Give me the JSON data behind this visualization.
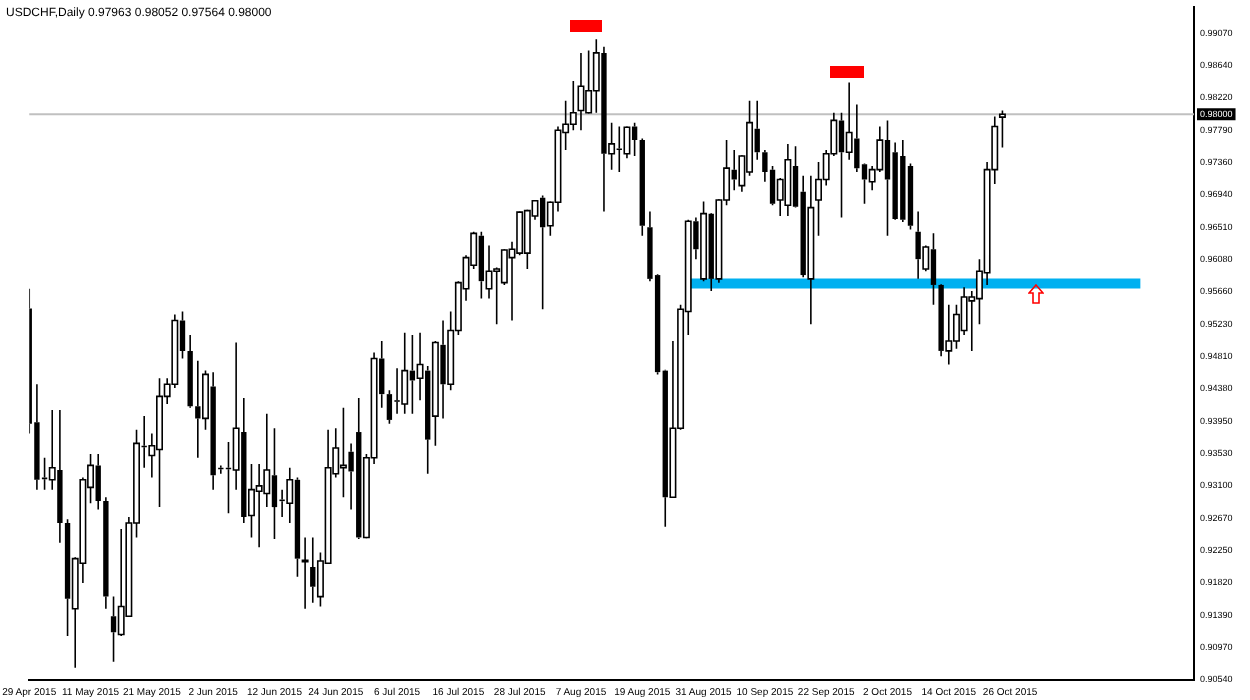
{
  "chart_data": {
    "type": "candlestick",
    "title": "USDCHF,Daily 0.97963 0.98052 0.97564 0.98000",
    "categories": [
      "29 Apr 2015",
      null,
      null,
      null,
      null,
      null,
      null,
      null,
      "11 May 2015",
      null,
      null,
      null,
      null,
      null,
      null,
      null,
      "21 May 2015",
      null,
      null,
      null,
      null,
      null,
      null,
      null,
      "2 Jun 2015",
      null,
      null,
      null,
      null,
      null,
      null,
      null,
      "12 Jun 2015",
      null,
      null,
      null,
      null,
      null,
      null,
      null,
      "24 Jun 2015",
      null,
      null,
      null,
      null,
      null,
      null,
      null,
      "6 Jul 2015",
      null,
      null,
      null,
      null,
      null,
      null,
      null,
      "16 Jul 2015",
      null,
      null,
      null,
      null,
      null,
      null,
      null,
      "28 Jul 2015",
      null,
      null,
      null,
      null,
      null,
      null,
      null,
      "7 Aug 2015",
      null,
      null,
      null,
      null,
      null,
      null,
      null,
      "19 Aug 2015",
      null,
      null,
      null,
      null,
      null,
      null,
      null,
      "31 Aug 2015",
      null,
      null,
      null,
      null,
      null,
      null,
      null,
      "10 Sep 2015",
      null,
      null,
      null,
      null,
      null,
      null,
      null,
      "22 Sep 2015",
      null,
      null,
      null,
      null,
      null,
      null,
      null,
      "2 Oct 2015",
      null,
      null,
      null,
      null,
      null,
      null,
      null,
      "14 Oct 2015",
      null,
      null,
      null,
      null,
      null,
      null,
      null,
      "26 Oct 2015",
      null,
      null,
      null,
      null,
      null,
      null,
      null,
      null,
      null,
      null,
      null,
      null,
      null,
      null,
      null,
      null,
      null,
      null,
      null,
      null,
      null,
      null,
      null,
      null
    ],
    "ohlc": [
      [
        0.9544,
        0.957,
        0.9379,
        0.9392
      ],
      [
        0.9394,
        0.9444,
        0.9305,
        0.9318
      ],
      [
        0.9321,
        0.9347,
        0.9305,
        0.932
      ],
      [
        0.9318,
        0.941,
        0.9305,
        0.9334
      ],
      [
        0.9331,
        0.941,
        0.9235,
        0.9261
      ],
      [
        0.9261,
        0.9266,
        0.9112,
        0.9161
      ],
      [
        0.9148,
        0.9216,
        0.907,
        0.9214
      ],
      [
        0.9208,
        0.9321,
        0.9182,
        0.9318
      ],
      [
        0.9308,
        0.9352,
        0.9287,
        0.9337
      ],
      [
        0.9337,
        0.9352,
        0.9279,
        0.929
      ],
      [
        0.929,
        0.9295,
        0.9148,
        0.9164
      ],
      [
        0.9138,
        0.9164,
        0.9078,
        0.9117
      ],
      [
        0.9114,
        0.9253,
        0.9112,
        0.9151
      ],
      [
        0.9138,
        0.9269,
        0.9137,
        0.9261
      ],
      [
        0.9261,
        0.9384,
        0.9242,
        0.9366
      ],
      [
        0.9363,
        0.9402,
        0.9334,
        0.9362
      ],
      [
        0.935,
        0.9379,
        0.9321,
        0.9363
      ],
      [
        0.9358,
        0.9452,
        0.9282,
        0.9428
      ],
      [
        0.9428,
        0.9452,
        0.9418,
        0.9444
      ],
      [
        0.9444,
        0.9536,
        0.9439,
        0.9528
      ],
      [
        0.9528,
        0.954,
        0.9478,
        0.9488
      ],
      [
        0.9488,
        0.9509,
        0.9413,
        0.9415
      ],
      [
        0.9415,
        0.9475,
        0.9347,
        0.9399
      ],
      [
        0.9399,
        0.9462,
        0.9384,
        0.9457
      ],
      [
        0.9441,
        0.946,
        0.9305,
        0.9324
      ],
      [
        0.9334,
        0.9337,
        0.9326,
        0.9333
      ],
      [
        0.9334,
        0.9368,
        0.9274,
        0.9333
      ],
      [
        0.9331,
        0.9499,
        0.9305,
        0.9386
      ],
      [
        0.9381,
        0.9426,
        0.9261,
        0.9269
      ],
      [
        0.9271,
        0.9339,
        0.9242,
        0.9305
      ],
      [
        0.9303,
        0.9339,
        0.9229,
        0.931
      ],
      [
        0.93,
        0.9405,
        0.9282,
        0.9331
      ],
      [
        0.9324,
        0.9386,
        0.924,
        0.9282
      ],
      [
        0.9292,
        0.9305,
        0.9269,
        0.9291
      ],
      [
        0.9287,
        0.9334,
        0.9261,
        0.9318
      ],
      [
        0.9318,
        0.9321,
        0.919,
        0.9214
      ],
      [
        0.9211,
        0.9242,
        0.9148,
        0.9212
      ],
      [
        0.9203,
        0.9242,
        0.9156,
        0.9177
      ],
      [
        0.9164,
        0.9222,
        0.9151,
        0.9211
      ],
      [
        0.9208,
        0.9384,
        0.9207,
        0.9334
      ],
      [
        0.9326,
        0.9386,
        0.9321,
        0.936
      ],
      [
        0.9334,
        0.9413,
        0.9295,
        0.9337
      ],
      [
        0.9355,
        0.9366,
        0.9279,
        0.9329
      ],
      [
        0.9381,
        0.9426,
        0.924,
        0.9242
      ],
      [
        0.9242,
        0.9352,
        0.9241,
        0.9347
      ],
      [
        0.9347,
        0.9486,
        0.9339,
        0.9478
      ],
      [
        0.9478,
        0.9501,
        0.9413,
        0.9431
      ],
      [
        0.9431,
        0.9436,
        0.9392,
        0.9397
      ],
      [
        0.9423,
        0.9465,
        0.9405,
        0.9422
      ],
      [
        0.9418,
        0.9512,
        0.9405,
        0.9462
      ],
      [
        0.9462,
        0.9509,
        0.9405,
        0.9449
      ],
      [
        0.9452,
        0.9512,
        0.9423,
        0.947
      ],
      [
        0.9462,
        0.9468,
        0.9326,
        0.9371
      ],
      [
        0.9402,
        0.9501,
        0.9363,
        0.9499
      ],
      [
        0.9496,
        0.9528,
        0.9399,
        0.9444
      ],
      [
        0.9444,
        0.954,
        0.9436,
        0.9515
      ],
      [
        0.9515,
        0.958,
        0.9509,
        0.9578
      ],
      [
        0.957,
        0.9614,
        0.9554,
        0.9611
      ],
      [
        0.9601,
        0.9645,
        0.9596,
        0.9643
      ],
      [
        0.964,
        0.9645,
        0.9557,
        0.958
      ],
      [
        0.957,
        0.9627,
        0.9557,
        0.9593
      ],
      [
        0.9593,
        0.9598,
        0.9523,
        0.9596
      ],
      [
        0.9578,
        0.9622,
        0.9575,
        0.9621
      ],
      [
        0.9611,
        0.9632,
        0.9528,
        0.9622
      ],
      [
        0.9617,
        0.9672,
        0.9614,
        0.9671
      ],
      [
        0.9617,
        0.9674,
        0.9596,
        0.9673
      ],
      [
        0.9666,
        0.9687,
        0.9661,
        0.9686
      ],
      [
        0.969,
        0.9693,
        0.9543,
        0.9651
      ],
      [
        0.9653,
        0.9685,
        0.964,
        0.9684
      ],
      [
        0.9684,
        0.9784,
        0.9672,
        0.9779
      ],
      [
        0.9776,
        0.9818,
        0.9753,
        0.9787
      ],
      [
        0.9787,
        0.9844,
        0.9779,
        0.9802
      ],
      [
        0.9805,
        0.9881,
        0.9779,
        0.9837
      ],
      [
        0.9802,
        0.9884,
        0.9801,
        0.9831
      ],
      [
        0.9831,
        0.9899,
        0.9802,
        0.9881
      ],
      [
        0.9881,
        0.9889,
        0.9672,
        0.9748
      ],
      [
        0.9748,
        0.9789,
        0.9727,
        0.9761
      ],
      [
        0.9755,
        0.9784,
        0.9724,
        0.9754
      ],
      [
        0.9748,
        0.9784,
        0.9742,
        0.9783
      ],
      [
        0.9784,
        0.9789,
        0.9745,
        0.9766
      ],
      [
        0.9766,
        0.9768,
        0.964,
        0.9653
      ],
      [
        0.9651,
        0.9672,
        0.958,
        0.9583
      ],
      [
        0.9588,
        0.9589,
        0.9457,
        0.946
      ],
      [
        0.9462,
        0.9463,
        0.9256,
        0.9295
      ],
      [
        0.9295,
        0.9501,
        0.9294,
        0.9386
      ],
      [
        0.9386,
        0.9549,
        0.9384,
        0.9543
      ],
      [
        0.954,
        0.9661,
        0.9509,
        0.9659
      ],
      [
        0.9659,
        0.9664,
        0.9609,
        0.9622
      ],
      [
        0.9583,
        0.9685,
        0.958,
        0.9669
      ],
      [
        0.9669,
        0.967,
        0.9567,
        0.9583
      ],
      [
        0.9583,
        0.9688,
        0.9578,
        0.9687
      ],
      [
        0.9687,
        0.9766,
        0.968,
        0.9729
      ],
      [
        0.9727,
        0.9753,
        0.97,
        0.9714
      ],
      [
        0.9706,
        0.9746,
        0.9698,
        0.9745
      ],
      [
        0.9724,
        0.9818,
        0.9719,
        0.9789
      ],
      [
        0.9781,
        0.9818,
        0.974,
        0.975
      ],
      [
        0.975,
        0.9753,
        0.9711,
        0.9724
      ],
      [
        0.9727,
        0.9732,
        0.968,
        0.9682
      ],
      [
        0.9687,
        0.9716,
        0.9666,
        0.9714
      ],
      [
        0.968,
        0.9761,
        0.9666,
        0.974
      ],
      [
        0.9732,
        0.9758,
        0.9677,
        0.9678
      ],
      [
        0.9698,
        0.9719,
        0.9585,
        0.9588
      ],
      [
        0.9583,
        0.9719,
        0.9523,
        0.9677
      ],
      [
        0.9687,
        0.9737,
        0.964,
        0.9714
      ],
      [
        0.9714,
        0.9753,
        0.9706,
        0.9748
      ],
      [
        0.9748,
        0.9802,
        0.9745,
        0.9792
      ],
      [
        0.9792,
        0.9802,
        0.9664,
        0.975
      ],
      [
        0.975,
        0.9842,
        0.974,
        0.9776
      ],
      [
        0.9768,
        0.9813,
        0.9724,
        0.9729
      ],
      [
        0.9734,
        0.9735,
        0.9682,
        0.9714
      ],
      [
        0.9711,
        0.9732,
        0.97,
        0.9727
      ],
      [
        0.9727,
        0.9784,
        0.9724,
        0.9766
      ],
      [
        0.9766,
        0.9792,
        0.964,
        0.9714
      ],
      [
        0.975,
        0.9763,
        0.9661,
        0.9662
      ],
      [
        0.9745,
        0.9766,
        0.9658,
        0.9661
      ],
      [
        0.9732,
        0.9735,
        0.9648,
        0.9653
      ],
      [
        0.9645,
        0.9672,
        0.9583,
        0.9609
      ],
      [
        0.9596,
        0.9627,
        0.9593,
        0.9625
      ],
      [
        0.9622,
        0.9643,
        0.9549,
        0.9575
      ],
      [
        0.9575,
        0.9576,
        0.9481,
        0.9488
      ],
      [
        0.9488,
        0.9549,
        0.947,
        0.9501
      ],
      [
        0.9501,
        0.9549,
        0.9491,
        0.9536
      ],
      [
        0.9515,
        0.9572,
        0.9509,
        0.9559
      ],
      [
        0.9554,
        0.9567,
        0.9488,
        0.9559
      ],
      [
        0.9557,
        0.9609,
        0.9523,
        0.9593
      ],
      [
        0.9591,
        0.9737,
        0.9575,
        0.9727
      ],
      [
        0.9727,
        0.9797,
        0.9708,
        0.9784
      ],
      [
        0.97963,
        0.98052,
        0.97564,
        0.98
      ],
      null,
      null,
      null,
      null,
      null,
      null,
      null,
      null,
      null,
      null,
      null,
      null,
      null,
      null,
      null,
      null,
      null,
      null,
      null,
      null,
      null,
      null,
      null,
      null,
      null
    ],
    "series": [
      {
        "type": "line",
        "color": "#00b0f0",
        "values": [
          null,
          null,
          null,
          null,
          null,
          null,
          null,
          null,
          null,
          null,
          null,
          null,
          null,
          null,
          null,
          null,
          null,
          null,
          null,
          null,
          null,
          null,
          null,
          null,
          null,
          null,
          null,
          null,
          null,
          null,
          null,
          null,
          null,
          null,
          null,
          null,
          null,
          null,
          null,
          null,
          null,
          null,
          null,
          null,
          null,
          null,
          null,
          null,
          null,
          null,
          null,
          null,
          null,
          null,
          null,
          null,
          null,
          null,
          null,
          null,
          null,
          null,
          null,
          null,
          null,
          null,
          null,
          null,
          null,
          null,
          null,
          null,
          null,
          null,
          null,
          null,
          null,
          null,
          null,
          null,
          null,
          null,
          null,
          null,
          null,
          null,
          0.9577,
          0.9577,
          0.9577,
          0.9577,
          0.9577,
          0.9577,
          0.9577,
          0.9577,
          0.9577,
          0.9577,
          0.9577,
          0.9577,
          0.9577,
          0.9577,
          0.9577,
          0.9577,
          0.9577,
          0.9577,
          0.9577,
          0.9577,
          0.9577,
          0.9577,
          0.9577,
          0.9577,
          0.9577,
          0.9577,
          0.9577,
          0.9577,
          0.9577,
          0.9577,
          0.9577,
          0.9577,
          0.9577,
          0.9577,
          0.9577,
          0.9577,
          0.9577,
          0.9577,
          0.9577,
          0.9577,
          0.9577,
          0.9577,
          0.9577,
          0.9577,
          0.9577,
          0.9577,
          0.9577,
          0.9577,
          0.9577,
          0.9577,
          0.9577,
          0.9577,
          0.9577,
          0.9577,
          0.9577,
          0.9577,
          0.9577,
          0.9577,
          0.9577,
          0.9577,
          null,
          null,
          null,
          null,
          null,
          null,
          null
        ]
      }
    ],
    "ylim": [
      0.9054,
      0.9941
    ],
    "yticks": [
      {
        "value": 0.9054,
        "label": "0.90540"
      },
      {
        "value": 0.9097,
        "label": "0.90970"
      },
      {
        "value": 0.9139,
        "label": "0.91390"
      },
      {
        "value": 0.9182,
        "label": "0.91820"
      },
      {
        "value": 0.9225,
        "label": "0.92250"
      },
      {
        "value": 0.9267,
        "label": "0.92670"
      },
      {
        "value": 0.931,
        "label": "0.93100"
      },
      {
        "value": 0.9353,
        "label": "0.93530"
      },
      {
        "value": 0.9395,
        "label": "0.93950"
      },
      {
        "value": 0.9438,
        "label": "0.94380"
      },
      {
        "value": 0.9481,
        "label": "0.94810"
      },
      {
        "value": 0.9523,
        "label": "0.95230"
      },
      {
        "value": 0.9566,
        "label": "0.95660"
      },
      {
        "value": 0.9608,
        "label": "0.96080"
      },
      {
        "value": 0.9651,
        "label": "0.96510"
      },
      {
        "value": 0.9694,
        "label": "0.96940"
      },
      {
        "value": 0.9736,
        "label": "0.97360"
      },
      {
        "value": 0.9779,
        "label": "0.97790"
      },
      {
        "value": 0.9822,
        "label": "0.98220"
      },
      {
        "value": 0.9864,
        "label": "0.98640"
      },
      {
        "value": 0.9907,
        "label": "0.99070"
      }
    ],
    "ref_lines": [
      {
        "axis": "y",
        "value": 0.98,
        "label": "0.98000",
        "color": "#c0c0c0"
      }
    ]
  }
}
